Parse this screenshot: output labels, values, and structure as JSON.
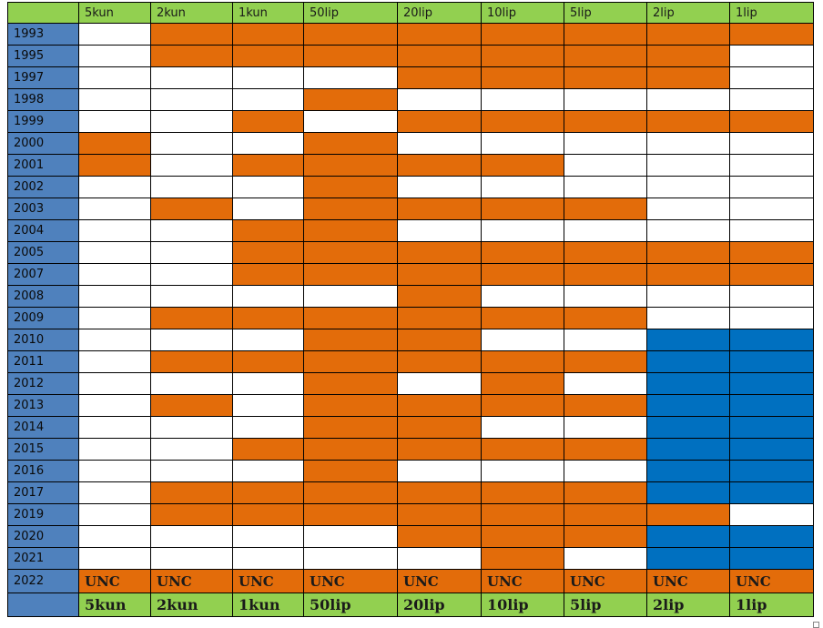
{
  "table": {
    "corner": "",
    "columns": [
      "5kun",
      "2kun",
      "1kun",
      "50lip",
      "20lip",
      "10lip",
      "5lip",
      "2lip",
      "1lip"
    ],
    "rows": [
      {
        "year": "1993",
        "cells": [
          "white",
          "orange",
          "orange",
          "orange",
          "orange",
          "orange",
          "orange",
          "orange",
          "orange"
        ]
      },
      {
        "year": "1995",
        "cells": [
          "white",
          "orange",
          "orange",
          "orange",
          "orange",
          "orange",
          "orange",
          "orange",
          "white"
        ]
      },
      {
        "year": "1997",
        "cells": [
          "white",
          "white",
          "white",
          "white",
          "orange",
          "orange",
          "orange",
          "orange",
          "white"
        ]
      },
      {
        "year": "1998",
        "cells": [
          "white",
          "white",
          "white",
          "orange",
          "white",
          "white",
          "white",
          "white",
          "white"
        ]
      },
      {
        "year": "1999",
        "cells": [
          "white",
          "white",
          "orange",
          "white",
          "orange",
          "orange",
          "orange",
          "orange",
          "orange"
        ]
      },
      {
        "year": "2000",
        "cells": [
          "orange",
          "white",
          "white",
          "orange",
          "white",
          "white",
          "white",
          "white",
          "white"
        ]
      },
      {
        "year": "2001",
        "cells": [
          "orange",
          "white",
          "orange",
          "orange",
          "orange",
          "orange",
          "white",
          "white",
          "white"
        ]
      },
      {
        "year": "2002",
        "cells": [
          "white",
          "white",
          "white",
          "orange",
          "white",
          "white",
          "white",
          "white",
          "white"
        ]
      },
      {
        "year": "2003",
        "cells": [
          "white",
          "orange",
          "white",
          "orange",
          "orange",
          "orange",
          "orange",
          "white",
          "white"
        ]
      },
      {
        "year": "2004",
        "cells": [
          "white",
          "white",
          "orange",
          "orange",
          "white",
          "white",
          "white",
          "white",
          "white"
        ]
      },
      {
        "year": "2005",
        "cells": [
          "white",
          "white",
          "orange",
          "orange",
          "orange",
          "orange",
          "orange",
          "orange",
          "orange"
        ]
      },
      {
        "year": "2007",
        "cells": [
          "white",
          "white",
          "orange",
          "orange",
          "orange",
          "orange",
          "orange",
          "orange",
          "orange"
        ]
      },
      {
        "year": "2008",
        "cells": [
          "white",
          "white",
          "white",
          "white",
          "orange",
          "white",
          "white",
          "white",
          "white"
        ]
      },
      {
        "year": "2009",
        "cells": [
          "white",
          "orange",
          "orange",
          "orange",
          "orange",
          "orange",
          "orange",
          "white",
          "white"
        ]
      },
      {
        "year": "2010",
        "cells": [
          "white",
          "white",
          "white",
          "orange",
          "orange",
          "white",
          "white",
          "blue",
          "blue"
        ]
      },
      {
        "year": "2011",
        "cells": [
          "white",
          "orange",
          "orange",
          "orange",
          "orange",
          "orange",
          "orange",
          "blue",
          "blue"
        ]
      },
      {
        "year": "2012",
        "cells": [
          "white",
          "white",
          "white",
          "orange",
          "white",
          "orange",
          "white",
          "blue",
          "blue"
        ]
      },
      {
        "year": "2013",
        "cells": [
          "white",
          "orange",
          "white",
          "orange",
          "orange",
          "orange",
          "orange",
          "blue",
          "blue"
        ]
      },
      {
        "year": "2014",
        "cells": [
          "white",
          "white",
          "white",
          "orange",
          "orange",
          "white",
          "white",
          "blue",
          "blue"
        ]
      },
      {
        "year": "2015",
        "cells": [
          "white",
          "white",
          "orange",
          "orange",
          "orange",
          "orange",
          "orange",
          "blue",
          "blue"
        ]
      },
      {
        "year": "2016",
        "cells": [
          "white",
          "white",
          "white",
          "orange",
          "white",
          "white",
          "white",
          "blue",
          "blue"
        ]
      },
      {
        "year": "2017",
        "cells": [
          "white",
          "orange",
          "orange",
          "orange",
          "orange",
          "orange",
          "orange",
          "blue",
          "blue"
        ]
      },
      {
        "year": "2019",
        "cells": [
          "white",
          "orange",
          "orange",
          "orange",
          "orange",
          "orange",
          "orange",
          "orange",
          "white"
        ]
      },
      {
        "year": "2020",
        "cells": [
          "white",
          "white",
          "white",
          "white",
          "orange",
          "orange",
          "orange",
          "blue",
          "blue"
        ]
      },
      {
        "year": "2021",
        "cells": [
          "white",
          "white",
          "white",
          "white",
          "white",
          "orange",
          "white",
          "blue",
          "blue"
        ]
      }
    ],
    "unc_row": {
      "year": "2022",
      "labels": [
        "UNC",
        "UNC",
        "UNC",
        "UNC",
        "UNC",
        "UNC",
        "UNC",
        "UNC",
        "UNC"
      ]
    },
    "footer": {
      "corner": "",
      "labels": [
        "5kun",
        "2kun",
        "1kun",
        "50lip",
        "20lip",
        "10lip",
        "5lip",
        "2lip",
        "1lip"
      ]
    }
  },
  "colors": {
    "header_green": "#92d050",
    "year_blue": "#4f81bd",
    "orange": "#e36c0a",
    "white": "#ffffff",
    "blue": "#0070c0"
  }
}
